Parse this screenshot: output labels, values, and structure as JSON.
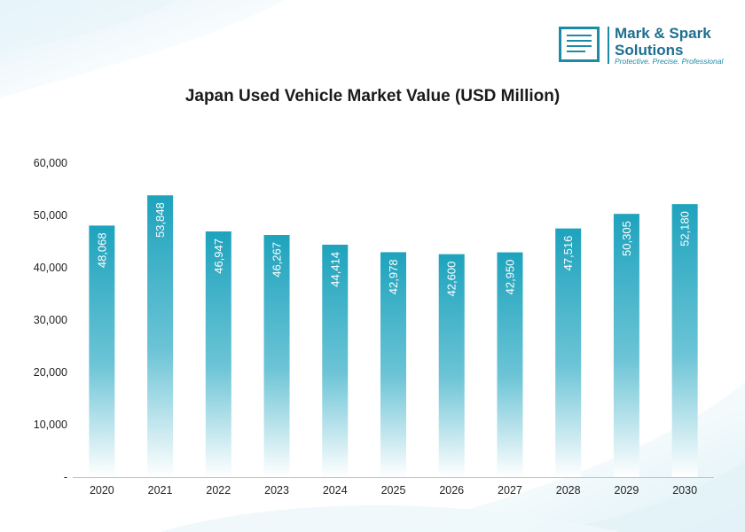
{
  "logo": {
    "name_line1": "Mark & Spark",
    "name_line2": "Solutions",
    "tagline": "Protective. Precise. Professional",
    "icon": "document-lines-icon"
  },
  "chart_data": {
    "type": "bar",
    "title": "Japan Used Vehicle Market Value (USD Million)",
    "xlabel": "",
    "ylabel": "",
    "categories": [
      "2020",
      "2021",
      "2022",
      "2023",
      "2024",
      "2025",
      "2026",
      "2027",
      "2028",
      "2029",
      "2030"
    ],
    "values": [
      48068,
      53848,
      46947,
      46267,
      44414,
      42978,
      42600,
      42950,
      47516,
      50305,
      52180
    ],
    "data_labels": [
      "48,068",
      "53,848",
      "46,947",
      "46,267",
      "44,414",
      "42,978",
      "42,600",
      "42,950",
      "47,516",
      "50,305",
      "52,180"
    ],
    "ylim": [
      0,
      60000
    ],
    "yticks": [
      0,
      10000,
      20000,
      30000,
      40000,
      50000,
      60000
    ],
    "ytick_labels": [
      "-",
      "10,000",
      "20,000",
      "30,000",
      "40,000",
      "50,000",
      "60,000"
    ],
    "grid": false,
    "legend": "none",
    "bar_color_top": "#1ea3bd",
    "bar_color_bottom": "#ffffff",
    "axis_color": "#bfc4c8"
  }
}
